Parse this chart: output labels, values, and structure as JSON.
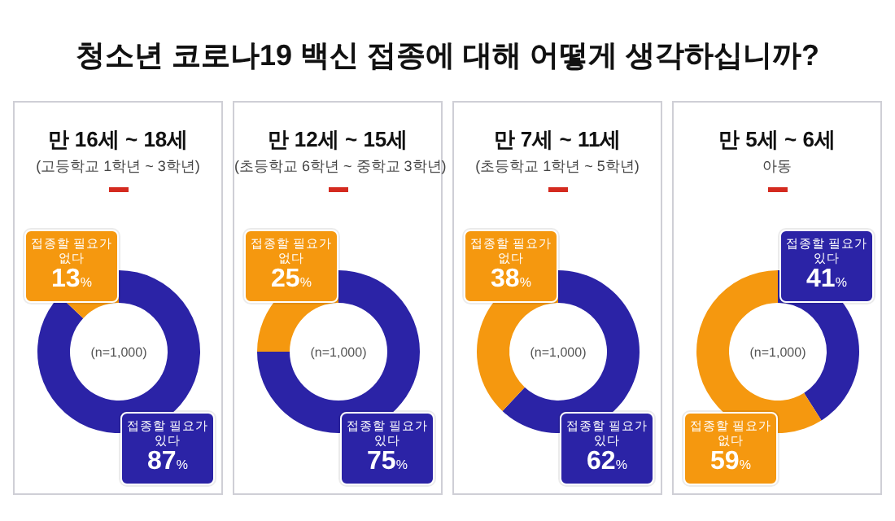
{
  "chart_data": [
    {
      "type": "other",
      "title": "청소년 코로나19 백신 접종에 대해 어떻게 생각하십니까?"
    },
    {
      "type": "donut",
      "title": "만 16세 ~ 18세",
      "subtitle": "(고등학교 1학년 ~ 3학년)",
      "categories": [
        "접종할 필요가 있다",
        "접종할 필요가 없다"
      ],
      "values": [
        87,
        13
      ],
      "colors": [
        "#2b23a6",
        "#f5980f"
      ],
      "value_labels": [
        "87%",
        "13%"
      ],
      "annotations": [
        "(n=1,000)"
      ]
    },
    {
      "type": "donut",
      "title": "만 12세 ~ 15세",
      "subtitle": "(초등학교 6학년 ~ 중학교 3학년)",
      "categories": [
        "접종할 필요가 있다",
        "접종할 필요가 없다"
      ],
      "values": [
        75,
        25
      ],
      "colors": [
        "#2b23a6",
        "#f5980f"
      ],
      "value_labels": [
        "75%",
        "25%"
      ],
      "annotations": [
        "(n=1,000)"
      ]
    },
    {
      "type": "donut",
      "title": "만 7세 ~ 11세",
      "subtitle": "(초등학교 1학년 ~ 5학년)",
      "categories": [
        "접종할 필요가 있다",
        "접종할 필요가 없다"
      ],
      "values": [
        62,
        38
      ],
      "colors": [
        "#2b23a6",
        "#f5980f"
      ],
      "value_labels": [
        "62%",
        "38%"
      ],
      "annotations": [
        "(n=1,000)"
      ]
    },
    {
      "type": "donut",
      "title": "만 5세 ~ 6세",
      "subtitle": "아동",
      "categories": [
        "접종할 필요가 있다",
        "접종할 필요가 없다"
      ],
      "values": [
        41,
        59
      ],
      "colors": [
        "#2b23a6",
        "#f5980f"
      ],
      "value_labels": [
        "41%",
        "59%"
      ],
      "annotations": [
        "(n=1,000)"
      ]
    }
  ]
}
